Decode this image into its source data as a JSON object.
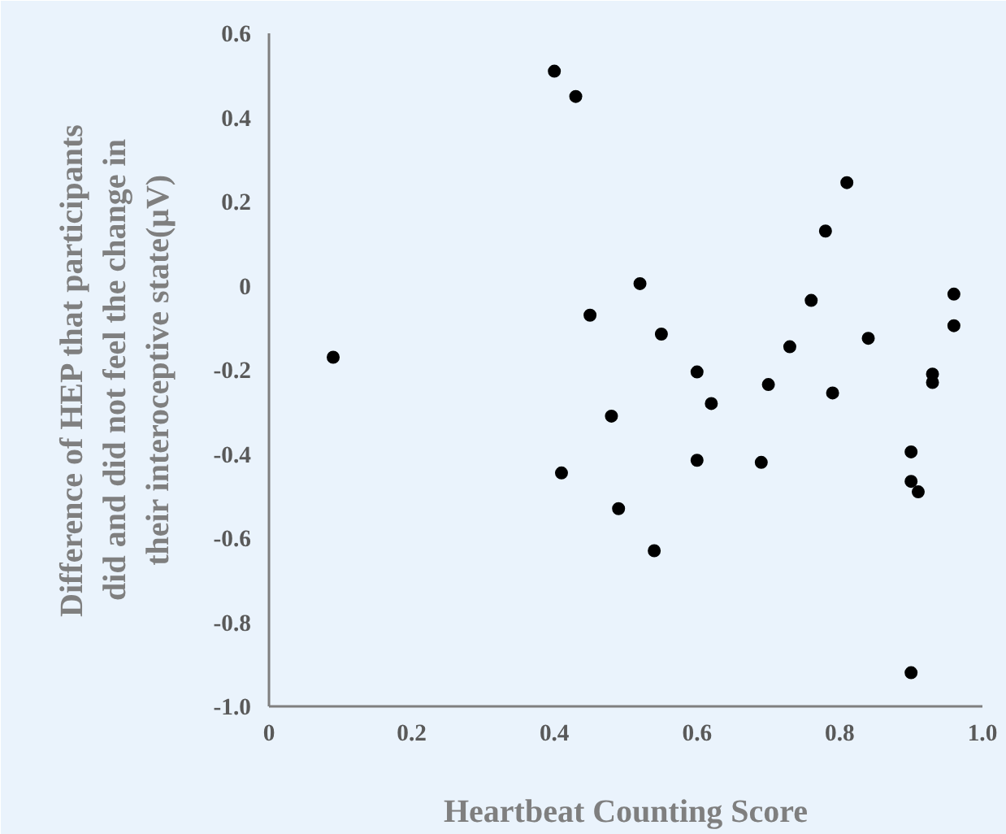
{
  "chart_data": {
    "type": "scatter",
    "xlabel": "Heartbeat Counting Score",
    "ylabel": "Difference of HEP that participants did and did not feel the change in their interoceptive state(μV)",
    "x": [
      0.09,
      0.4,
      0.43,
      0.41,
      0.45,
      0.48,
      0.49,
      0.52,
      0.54,
      0.55,
      0.6,
      0.6,
      0.62,
      0.69,
      0.7,
      0.73,
      0.76,
      0.78,
      0.79,
      0.81,
      0.84,
      0.9,
      0.9,
      0.91,
      0.9,
      0.93,
      0.93,
      0.96,
      0.96
    ],
    "series": [
      {
        "color": "#000000",
        "values": [
          -0.17,
          0.51,
          0.45,
          -0.445,
          -0.07,
          -0.31,
          -0.53,
          0.005,
          -0.63,
          -0.115,
          -0.205,
          -0.415,
          -0.28,
          -0.42,
          -0.235,
          -0.145,
          -0.035,
          0.13,
          -0.255,
          0.245,
          -0.125,
          -0.395,
          -0.465,
          -0.49,
          -0.92,
          -0.21,
          -0.23,
          -0.02,
          -0.095
        ]
      }
    ],
    "xlim": [
      0,
      1.0
    ],
    "ylim": [
      -1.0,
      0.6
    ],
    "xticks": [
      0,
      0.2,
      0.4,
      0.6,
      0.8,
      {
        "value": 1.0,
        "label": "1.0"
      }
    ],
    "yticks": [
      {
        "value": -1.0,
        "label": "-1.0"
      },
      -0.8,
      -0.6,
      -0.4,
      -0.2,
      0,
      0.2,
      0.4,
      0.6
    ],
    "grid": false,
    "marker": "circle"
  }
}
